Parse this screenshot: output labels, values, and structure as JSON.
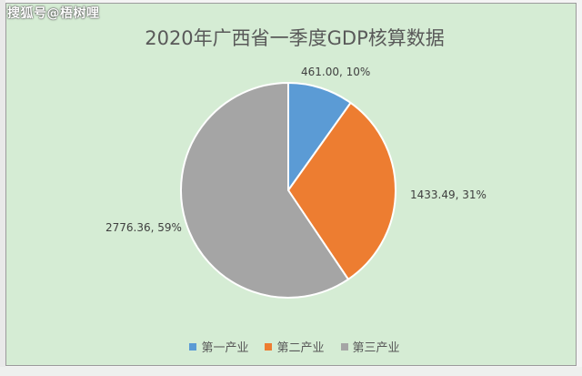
{
  "watermark": "搜狐号@梧树哩",
  "chart_data": {
    "type": "pie",
    "title": "2020年广西省一季度GDP核算数据",
    "categories": [
      "第一产业",
      "第二产业",
      "第三产业"
    ],
    "values": [
      461.0,
      1433.49,
      2776.36
    ],
    "percents": [
      "10%",
      "31%",
      "59%"
    ],
    "data_labels": [
      "461.00, 10%",
      "1433.49, 31%",
      "2776.36, 59%"
    ],
    "colors": [
      "#5b9bd5",
      "#ed7d31",
      "#a5a5a5"
    ],
    "legend_position": "bottom",
    "start_angle": "12 o'clock, clockwise"
  }
}
